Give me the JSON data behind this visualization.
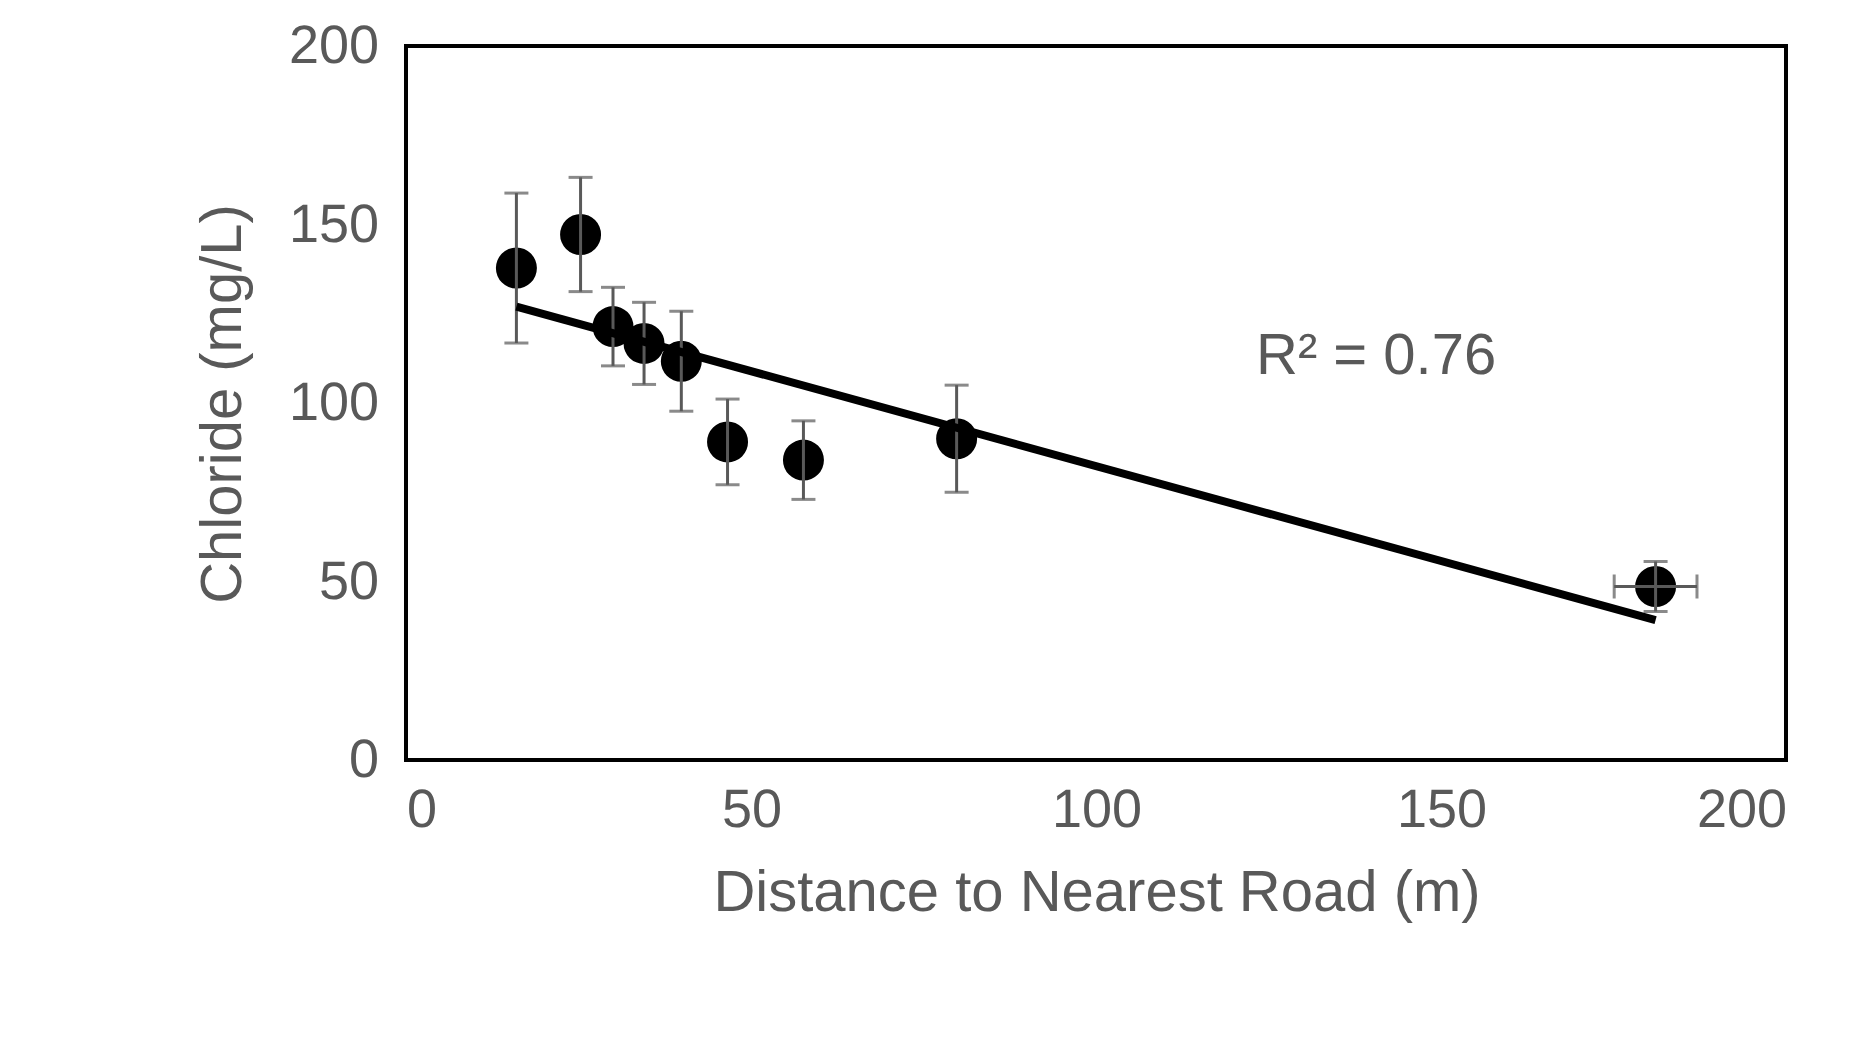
{
  "chart_data": {
    "type": "scatter",
    "xlabel": "Distance to Nearest Road (m)",
    "ylabel": "Chloride (mg/L)",
    "xlim": [
      0,
      200
    ],
    "xticks": [
      0,
      50,
      100,
      150,
      200
    ],
    "ylim": [
      0,
      200
    ],
    "yticks": [
      0,
      50,
      100,
      150,
      200
    ],
    "grid": false,
    "legend": false,
    "marker": "circle",
    "annotations": [
      "R² = 0.76"
    ],
    "series": [
      {
        "color": "#000000",
        "x": [
          16.0,
          25.3,
          30.0,
          34.5,
          39.9,
          46.6,
          57.6,
          79.8,
          181.1
        ],
        "values": [
          137.8,
          147.2,
          121.4,
          116.7,
          111.7,
          89.1,
          84.0,
          90.0,
          48.6
        ],
        "errors": [
          21,
          16,
          11,
          11.5,
          14,
          12,
          11,
          15,
          7
        ],
        "xerrors": [
          null,
          null,
          null,
          null,
          null,
          null,
          null,
          null,
          6
        ]
      },
      {
        "type": "line",
        "color": "#000000",
        "line_style": "solid",
        "marker": "none",
        "x": [
          16.0,
          181.1
        ],
        "values": [
          127.0,
          39.2
        ]
      }
    ]
  }
}
